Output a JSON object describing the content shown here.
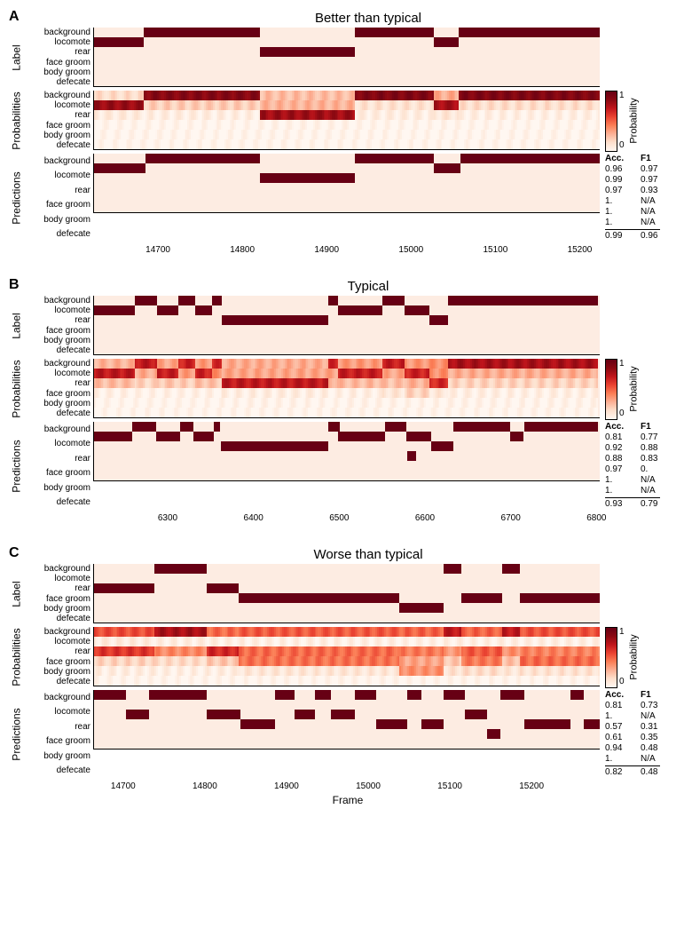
{
  "colors": {
    "accent": "#670014",
    "rowBg": "#fdece2",
    "grid": "#000000",
    "probRamp": [
      "#fff7f1",
      "#fde0cd",
      "#fcb196",
      "#fb7f57",
      "#ea4432",
      "#c1161c",
      "#8b0912",
      "#670014"
    ]
  },
  "xlabel": "Frame",
  "ylabels": [
    "Label",
    "Probabilities",
    "Predictions"
  ],
  "categories": [
    "background",
    "locomote",
    "rear",
    "face groom",
    "body groom",
    "defecate"
  ],
  "colorbar": {
    "min": 0,
    "max": 1,
    "label": "Probability"
  },
  "metricsHeader": {
    "acc": "Acc.",
    "f1": "F1"
  },
  "panels": [
    {
      "letter": "A",
      "title": "Better than typical",
      "xlim": [
        14620,
        15230
      ],
      "xticks": [
        14700,
        14800,
        14900,
        15000,
        15100,
        15200
      ],
      "labelSegments": {
        "background": [
          [
            14680,
            14820
          ],
          [
            14935,
            15030
          ],
          [
            15060,
            15230
          ]
        ],
        "locomote": [
          [
            14620,
            14680
          ],
          [
            15030,
            15060
          ]
        ],
        "rear": [
          [
            14820,
            14935
          ]
        ]
      },
      "predSegments": {
        "background": [
          [
            14682,
            14820
          ],
          [
            14935,
            15030
          ],
          [
            15062,
            15230
          ]
        ],
        "locomote": [
          [
            14620,
            14682
          ],
          [
            15030,
            15062
          ]
        ],
        "rear": [
          [
            14820,
            14935
          ]
        ]
      },
      "probProfile": [
        {
          "range": [
            14620,
            14680
          ],
          "p": [
            0.15,
            0.82,
            0.08,
            0.01,
            0.01,
            0.01
          ]
        },
        {
          "range": [
            14680,
            14820
          ],
          "p": [
            0.88,
            0.2,
            0.06,
            0.01,
            0.01,
            0.01
          ]
        },
        {
          "range": [
            14820,
            14935
          ],
          "p": [
            0.25,
            0.28,
            0.8,
            0.02,
            0.01,
            0.01
          ]
        },
        {
          "range": [
            14935,
            15030
          ],
          "p": [
            0.9,
            0.12,
            0.06,
            0.01,
            0.01,
            0.01
          ]
        },
        {
          "range": [
            15030,
            15060
          ],
          "p": [
            0.3,
            0.78,
            0.1,
            0.01,
            0.01,
            0.01
          ]
        },
        {
          "range": [
            15060,
            15230
          ],
          "p": [
            0.9,
            0.14,
            0.05,
            0.01,
            0.01,
            0.01
          ]
        }
      ],
      "metrics": {
        "rows": [
          [
            "0.96",
            "0.97"
          ],
          [
            "0.99",
            "0.97"
          ],
          [
            "0.97",
            "0.93"
          ],
          [
            "1.",
            "N/A"
          ],
          [
            "1.",
            "N/A"
          ],
          [
            "1.",
            "N/A"
          ]
        ],
        "summary": [
          "0.99",
          "0.96"
        ]
      }
    },
    {
      "letter": "B",
      "title": "Typical",
      "xlim": [
        6210,
        6810
      ],
      "xticks": [
        6300,
        6400,
        6500,
        6600,
        6700,
        6800
      ],
      "labelSegments": {
        "background": [
          [
            6258,
            6285
          ],
          [
            6310,
            6330
          ],
          [
            6350,
            6362
          ],
          [
            6488,
            6500
          ],
          [
            6552,
            6578
          ],
          [
            6630,
            6808
          ]
        ],
        "locomote": [
          [
            6210,
            6258
          ],
          [
            6285,
            6310
          ],
          [
            6330,
            6350
          ],
          [
            6500,
            6552
          ],
          [
            6578,
            6608
          ]
        ],
        "rear": [
          [
            6362,
            6488
          ],
          [
            6608,
            6630
          ]
        ]
      },
      "predSegments": {
        "background": [
          [
            6255,
            6284
          ],
          [
            6312,
            6328
          ],
          [
            6352,
            6360
          ],
          [
            6488,
            6502
          ],
          [
            6555,
            6580
          ],
          [
            6636,
            6704
          ],
          [
            6720,
            6808
          ]
        ],
        "locomote": [
          [
            6210,
            6255
          ],
          [
            6284,
            6312
          ],
          [
            6328,
            6352
          ],
          [
            6500,
            6555
          ],
          [
            6580,
            6610
          ],
          [
            6704,
            6720
          ]
        ],
        "rear": [
          [
            6360,
            6488
          ],
          [
            6610,
            6636
          ]
        ],
        "face groom": [
          [
            6582,
            6592
          ]
        ]
      },
      "probProfile": [
        {
          "range": [
            6210,
            6258
          ],
          "p": [
            0.28,
            0.72,
            0.25,
            0.04,
            0.01,
            0.01
          ]
        },
        {
          "range": [
            6258,
            6285
          ],
          "p": [
            0.72,
            0.3,
            0.18,
            0.03,
            0.01,
            0.01
          ]
        },
        {
          "range": [
            6285,
            6310
          ],
          "p": [
            0.32,
            0.7,
            0.22,
            0.04,
            0.01,
            0.01
          ]
        },
        {
          "range": [
            6310,
            6330
          ],
          "p": [
            0.68,
            0.35,
            0.2,
            0.03,
            0.01,
            0.01
          ]
        },
        {
          "range": [
            6330,
            6350
          ],
          "p": [
            0.35,
            0.68,
            0.24,
            0.04,
            0.01,
            0.01
          ]
        },
        {
          "range": [
            6350,
            6362
          ],
          "p": [
            0.65,
            0.38,
            0.22,
            0.03,
            0.01,
            0.01
          ]
        },
        {
          "range": [
            6362,
            6488
          ],
          "p": [
            0.3,
            0.32,
            0.72,
            0.06,
            0.02,
            0.01
          ]
        },
        {
          "range": [
            6488,
            6500
          ],
          "p": [
            0.66,
            0.32,
            0.3,
            0.04,
            0.01,
            0.01
          ]
        },
        {
          "range": [
            6500,
            6552
          ],
          "p": [
            0.35,
            0.7,
            0.26,
            0.05,
            0.02,
            0.01
          ]
        },
        {
          "range": [
            6552,
            6578
          ],
          "p": [
            0.7,
            0.32,
            0.24,
            0.1,
            0.02,
            0.01
          ]
        },
        {
          "range": [
            6578,
            6608
          ],
          "p": [
            0.36,
            0.68,
            0.28,
            0.18,
            0.02,
            0.01
          ]
        },
        {
          "range": [
            6608,
            6630
          ],
          "p": [
            0.38,
            0.38,
            0.66,
            0.1,
            0.02,
            0.01
          ]
        },
        {
          "range": [
            6630,
            6808
          ],
          "p": [
            0.78,
            0.3,
            0.18,
            0.05,
            0.02,
            0.01
          ]
        }
      ],
      "metrics": {
        "rows": [
          [
            "0.81",
            "0.77"
          ],
          [
            "0.92",
            "0.88"
          ],
          [
            "0.88",
            "0.83"
          ],
          [
            "0.97",
            "0."
          ],
          [
            "1.",
            "N/A"
          ],
          [
            "1.",
            "N/A"
          ]
        ],
        "summary": [
          "0.93",
          "0.79"
        ]
      }
    },
    {
      "letter": "C",
      "title": "Worse than typical",
      "xlim": [
        14660,
        15290
      ],
      "xticks": [
        14700,
        14800,
        14900,
        15000,
        15100,
        15200
      ],
      "labelSegments": {
        "background": [
          [
            14735,
            14800
          ],
          [
            15095,
            15118
          ],
          [
            15168,
            15190
          ]
        ],
        "locomote": [],
        "rear": [
          [
            14660,
            14735
          ],
          [
            14800,
            14840
          ]
        ],
        "face groom": [
          [
            14840,
            15040
          ],
          [
            15118,
            15168
          ],
          [
            15190,
            15290
          ]
        ],
        "body groom": [
          [
            15040,
            15095
          ]
        ]
      },
      "predSegments": {
        "background": [
          [
            14660,
            14700
          ],
          [
            14728,
            14800
          ],
          [
            14885,
            14910
          ],
          [
            14935,
            14955
          ],
          [
            14985,
            15012
          ],
          [
            15050,
            15068
          ],
          [
            15095,
            15122
          ],
          [
            15166,
            15196
          ],
          [
            15254,
            15270
          ]
        ],
        "locomote": [],
        "rear": [
          [
            14700,
            14728
          ],
          [
            14800,
            14842
          ],
          [
            14910,
            14935
          ],
          [
            14955,
            14985
          ],
          [
            15122,
            15150
          ]
        ],
        "face groom": [
          [
            14842,
            14885
          ],
          [
            15012,
            15050
          ],
          [
            15068,
            15095
          ],
          [
            15196,
            15254
          ],
          [
            15270,
            15290
          ]
        ],
        "body groom": [
          [
            15150,
            15166
          ]
        ]
      },
      "probProfile": [
        {
          "range": [
            14660,
            14735
          ],
          "p": [
            0.55,
            0.08,
            0.62,
            0.18,
            0.06,
            0.01
          ]
        },
        {
          "range": [
            14735,
            14800
          ],
          "p": [
            0.78,
            0.06,
            0.4,
            0.15,
            0.05,
            0.01
          ]
        },
        {
          "range": [
            14800,
            14840
          ],
          "p": [
            0.48,
            0.06,
            0.66,
            0.22,
            0.06,
            0.01
          ]
        },
        {
          "range": [
            14840,
            15040
          ],
          "p": [
            0.52,
            0.05,
            0.48,
            0.46,
            0.1,
            0.01
          ]
        },
        {
          "range": [
            15040,
            15095
          ],
          "p": [
            0.5,
            0.04,
            0.44,
            0.32,
            0.38,
            0.01
          ]
        },
        {
          "range": [
            15095,
            15118
          ],
          "p": [
            0.72,
            0.05,
            0.36,
            0.22,
            0.12,
            0.01
          ]
        },
        {
          "range": [
            15118,
            15168
          ],
          "p": [
            0.5,
            0.05,
            0.52,
            0.44,
            0.14,
            0.01
          ]
        },
        {
          "range": [
            15168,
            15190
          ],
          "p": [
            0.72,
            0.05,
            0.38,
            0.24,
            0.1,
            0.01
          ]
        },
        {
          "range": [
            15190,
            15290
          ],
          "p": [
            0.54,
            0.05,
            0.42,
            0.48,
            0.12,
            0.01
          ]
        }
      ],
      "metrics": {
        "rows": [
          [
            "0.81",
            "0.73"
          ],
          [
            "1.",
            "N/A"
          ],
          [
            "0.57",
            "0.31"
          ],
          [
            "0.61",
            "0.35"
          ],
          [
            "0.94",
            "0.48"
          ],
          [
            "1.",
            "N/A"
          ]
        ],
        "summary": [
          "0.82",
          "0.48"
        ]
      }
    }
  ]
}
